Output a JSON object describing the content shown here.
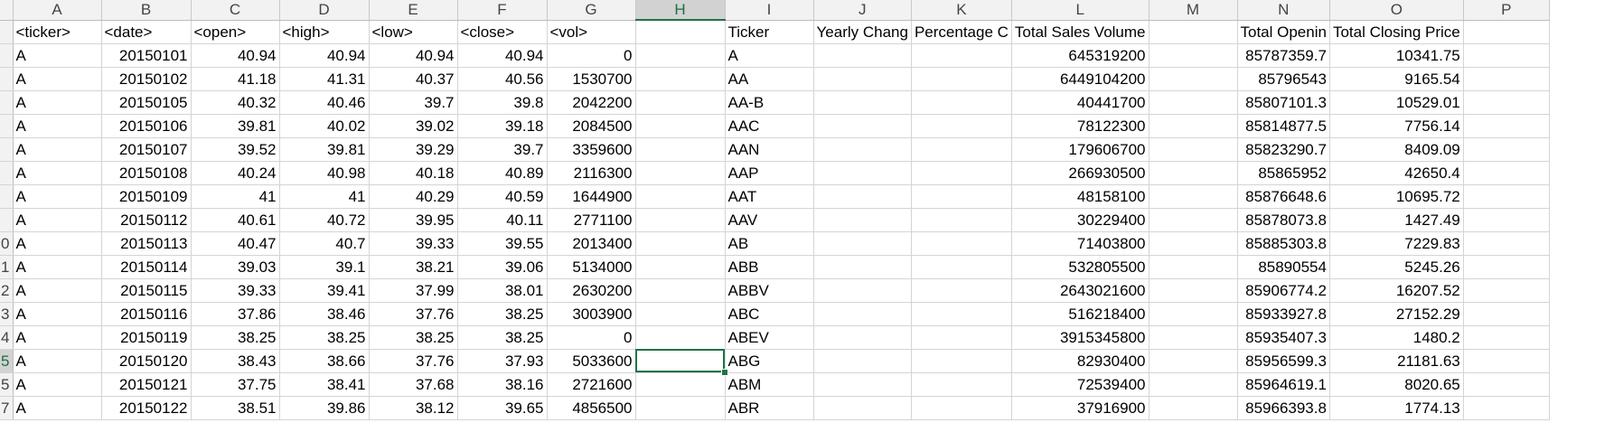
{
  "columns": [
    "A",
    "B",
    "C",
    "D",
    "E",
    "F",
    "G",
    "H",
    "I",
    "J",
    "K",
    "L",
    "M",
    "N",
    "O",
    "P"
  ],
  "active_column": "H",
  "row_numbers": [
    "",
    "",
    "",
    "",
    "",
    "",
    "",
    "",
    "",
    "0",
    "1",
    "2",
    "3",
    "4",
    "5",
    "5",
    "7"
  ],
  "active_row_index": 14,
  "header_row": [
    "<ticker>",
    "<date>",
    "<open>",
    "<high>",
    "<low>",
    "<close>",
    "<vol>",
    "",
    "Ticker",
    "Yearly Chang",
    "Percentage C",
    "Total Sales Volume",
    "",
    "Total Openin",
    "Total Closing Price",
    ""
  ],
  "rows": [
    [
      "A",
      "20150101",
      "40.94",
      "40.94",
      "40.94",
      "40.94",
      "0",
      "",
      "A",
      "",
      "",
      "645319200",
      "",
      "85787359.7",
      "10341.75",
      ""
    ],
    [
      "A",
      "20150102",
      "41.18",
      "41.31",
      "40.37",
      "40.56",
      "1530700",
      "",
      "AA",
      "",
      "",
      "6449104200",
      "",
      "85796543",
      "9165.54",
      ""
    ],
    [
      "A",
      "20150105",
      "40.32",
      "40.46",
      "39.7",
      "39.8",
      "2042200",
      "",
      "AA-B",
      "",
      "",
      "40441700",
      "",
      "85807101.3",
      "10529.01",
      ""
    ],
    [
      "A",
      "20150106",
      "39.81",
      "40.02",
      "39.02",
      "39.18",
      "2084500",
      "",
      "AAC",
      "",
      "",
      "78122300",
      "",
      "85814877.5",
      "7756.14",
      ""
    ],
    [
      "A",
      "20150107",
      "39.52",
      "39.81",
      "39.29",
      "39.7",
      "3359600",
      "",
      "AAN",
      "",
      "",
      "179606700",
      "",
      "85823290.7",
      "8409.09",
      ""
    ],
    [
      "A",
      "20150108",
      "40.24",
      "40.98",
      "40.18",
      "40.89",
      "2116300",
      "",
      "AAP",
      "",
      "",
      "266930500",
      "",
      "85865952",
      "42650.4",
      ""
    ],
    [
      "A",
      "20150109",
      "41",
      "41",
      "40.29",
      "40.59",
      "1644900",
      "",
      "AAT",
      "",
      "",
      "48158100",
      "",
      "85876648.6",
      "10695.72",
      ""
    ],
    [
      "A",
      "20150112",
      "40.61",
      "40.72",
      "39.95",
      "40.11",
      "2771100",
      "",
      "AAV",
      "",
      "",
      "30229400",
      "",
      "85878073.8",
      "1427.49",
      ""
    ],
    [
      "A",
      "20150113",
      "40.47",
      "40.7",
      "39.33",
      "39.55",
      "2013400",
      "",
      "AB",
      "",
      "",
      "71403800",
      "",
      "85885303.8",
      "7229.83",
      ""
    ],
    [
      "A",
      "20150114",
      "39.03",
      "39.1",
      "38.21",
      "39.06",
      "5134000",
      "",
      "ABB",
      "",
      "",
      "532805500",
      "",
      "85890554",
      "5245.26",
      ""
    ],
    [
      "A",
      "20150115",
      "39.33",
      "39.41",
      "37.99",
      "38.01",
      "2630200",
      "",
      "ABBV",
      "",
      "",
      "2643021600",
      "",
      "85906774.2",
      "16207.52",
      ""
    ],
    [
      "A",
      "20150116",
      "37.86",
      "38.46",
      "37.76",
      "38.25",
      "3003900",
      "",
      "ABC",
      "",
      "",
      "516218400",
      "",
      "85933927.8",
      "27152.29",
      ""
    ],
    [
      "A",
      "20150119",
      "38.25",
      "38.25",
      "38.25",
      "38.25",
      "0",
      "",
      "ABEV",
      "",
      "",
      "3915345800",
      "",
      "85935407.3",
      "1480.2",
      ""
    ],
    [
      "A",
      "20150120",
      "38.43",
      "38.66",
      "37.76",
      "37.93",
      "5033600",
      "",
      "ABG",
      "",
      "",
      "82930400",
      "",
      "85956599.3",
      "21181.63",
      ""
    ],
    [
      "A",
      "20150121",
      "37.75",
      "38.41",
      "37.68",
      "38.16",
      "2721600",
      "",
      "ABM",
      "",
      "",
      "72539400",
      "",
      "85964619.1",
      "8020.65",
      ""
    ],
    [
      "A",
      "20150122",
      "38.51",
      "39.86",
      "38.12",
      "39.65",
      "4856500",
      "",
      "ABR",
      "",
      "",
      "37916900",
      "",
      "85966393.8",
      "1774.13",
      ""
    ]
  ]
}
